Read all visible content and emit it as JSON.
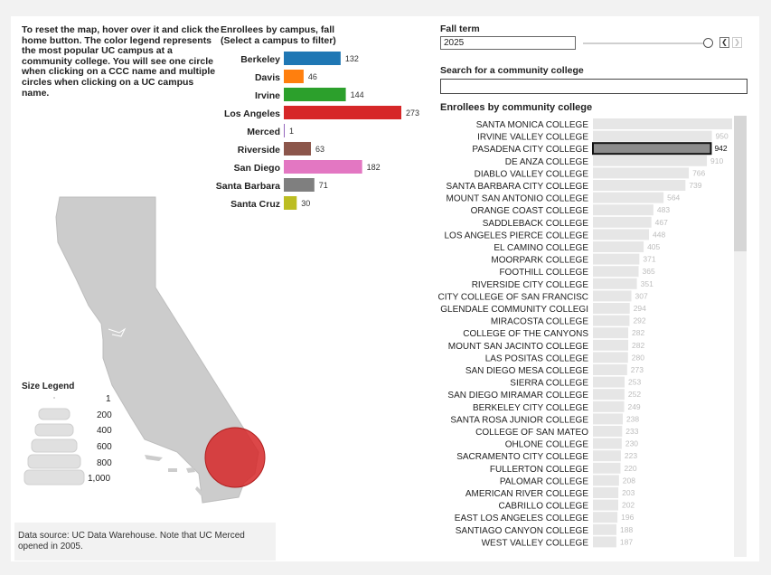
{
  "instructions": "To reset the map, hover over it and click the home button. The color legend represents the most popular UC campus at a community college. You will see one circle when clicking on a CCC name and multiple circles when clicking on a UC campus name.",
  "campus_chart": {
    "title_line1": "Enrollees by campus, fall",
    "title_line2": "(Select a campus to filter)"
  },
  "fall_term": {
    "label": "Fall term",
    "value": "2025",
    "prev_icon": "chevron-left-icon",
    "next_icon": "chevron-right-icon"
  },
  "search": {
    "label": "Search for a community college",
    "value": ""
  },
  "ccc_chart": {
    "title": "Enrollees by community college",
    "selected": "PASADENA CITY COLLEGE"
  },
  "size_legend": {
    "title": "Size Legend",
    "items": [
      "1",
      "200",
      "400",
      "600",
      "800",
      "1,000"
    ]
  },
  "source_note": "Data source: UC Data Warehouse. Note that UC Merced opened in 2005.",
  "chart_data": [
    {
      "type": "bar",
      "orientation": "horizontal",
      "title": "Enrollees by campus, fall",
      "subtitle": "(Select a campus to filter)",
      "categories": [
        "Berkeley",
        "Davis",
        "Irvine",
        "Los Angeles",
        "Merced",
        "Riverside",
        "San Diego",
        "Santa Barbara",
        "Santa Cruz"
      ],
      "values": [
        132,
        46,
        144,
        273,
        1,
        63,
        182,
        71,
        30
      ],
      "colors": [
        "#1f77b4",
        "#ff7f0e",
        "#2ca02c",
        "#d62728",
        "#9467bd",
        "#8c564b",
        "#e377c2",
        "#7f7f7f",
        "#bcbd22"
      ]
    },
    {
      "type": "bar",
      "orientation": "horizontal",
      "title": "Enrollees by community college",
      "categories": [
        "SANTA MONICA COLLEGE",
        "IRVINE VALLEY COLLEGE",
        "PASADENA CITY COLLEGE",
        "DE ANZA COLLEGE",
        "DIABLO VALLEY COLLEGE",
        "SANTA BARBARA CITY COLLEGE",
        "MOUNT SAN ANTONIO COLLEGE",
        "ORANGE COAST COLLEGE",
        "SADDLEBACK COLLEGE",
        "LOS ANGELES PIERCE COLLEGE",
        "EL CAMINO COLLEGE",
        "MOORPARK COLLEGE",
        "FOOTHILL COLLEGE",
        "RIVERSIDE CITY COLLEGE",
        "CITY COLLEGE OF SAN FRANCISC",
        "GLENDALE COMMUNITY COLLEGI",
        "MIRACOSTA COLLEGE",
        "COLLEGE OF THE CANYONS",
        "MOUNT SAN JACINTO COLLEGE",
        "LAS POSITAS COLLEGE",
        "SAN DIEGO MESA COLLEGE",
        "SIERRA COLLEGE",
        "SAN DIEGO MIRAMAR COLLEGE",
        "BERKELEY CITY COLLEGE",
        "SANTA ROSA JUNIOR COLLEGE",
        "COLLEGE OF SAN MATEO",
        "OHLONE COLLEGE",
        "SACRAMENTO CITY COLLEGE",
        "FULLERTON COLLEGE",
        "PALOMAR COLLEGE",
        "AMERICAN RIVER COLLEGE",
        "CABRILLO COLLEGE",
        "EAST LOS ANGELES COLLEGE",
        "SANTIAGO CANYON COLLEGE",
        "WEST VALLEY COLLEGE"
      ],
      "labels": [
        "1,112",
        "950",
        "942",
        "910",
        "766",
        "739",
        "564",
        "483",
        "467",
        "448",
        "405",
        "371",
        "365",
        "351",
        "307",
        "294",
        "292",
        "282",
        "282",
        "280",
        "273",
        "253",
        "252",
        "249",
        "238",
        "233",
        "230",
        "223",
        "220",
        "208",
        "203",
        "202",
        "196",
        "188",
        "187"
      ],
      "values": [
        1112,
        950,
        942,
        910,
        766,
        739,
        564,
        483,
        467,
        448,
        405,
        371,
        365,
        351,
        307,
        294,
        292,
        282,
        282,
        280,
        273,
        253,
        252,
        249,
        238,
        233,
        230,
        223,
        220,
        208,
        203,
        202,
        196,
        188,
        187
      ],
      "xlim": [
        0,
        1112
      ],
      "bar_color": "#e6e6e6",
      "selected_color": "#8c8c8c"
    }
  ],
  "map": {
    "state_color": "#cccccc",
    "circle_color": "#d62728",
    "circle_value": 942
  }
}
